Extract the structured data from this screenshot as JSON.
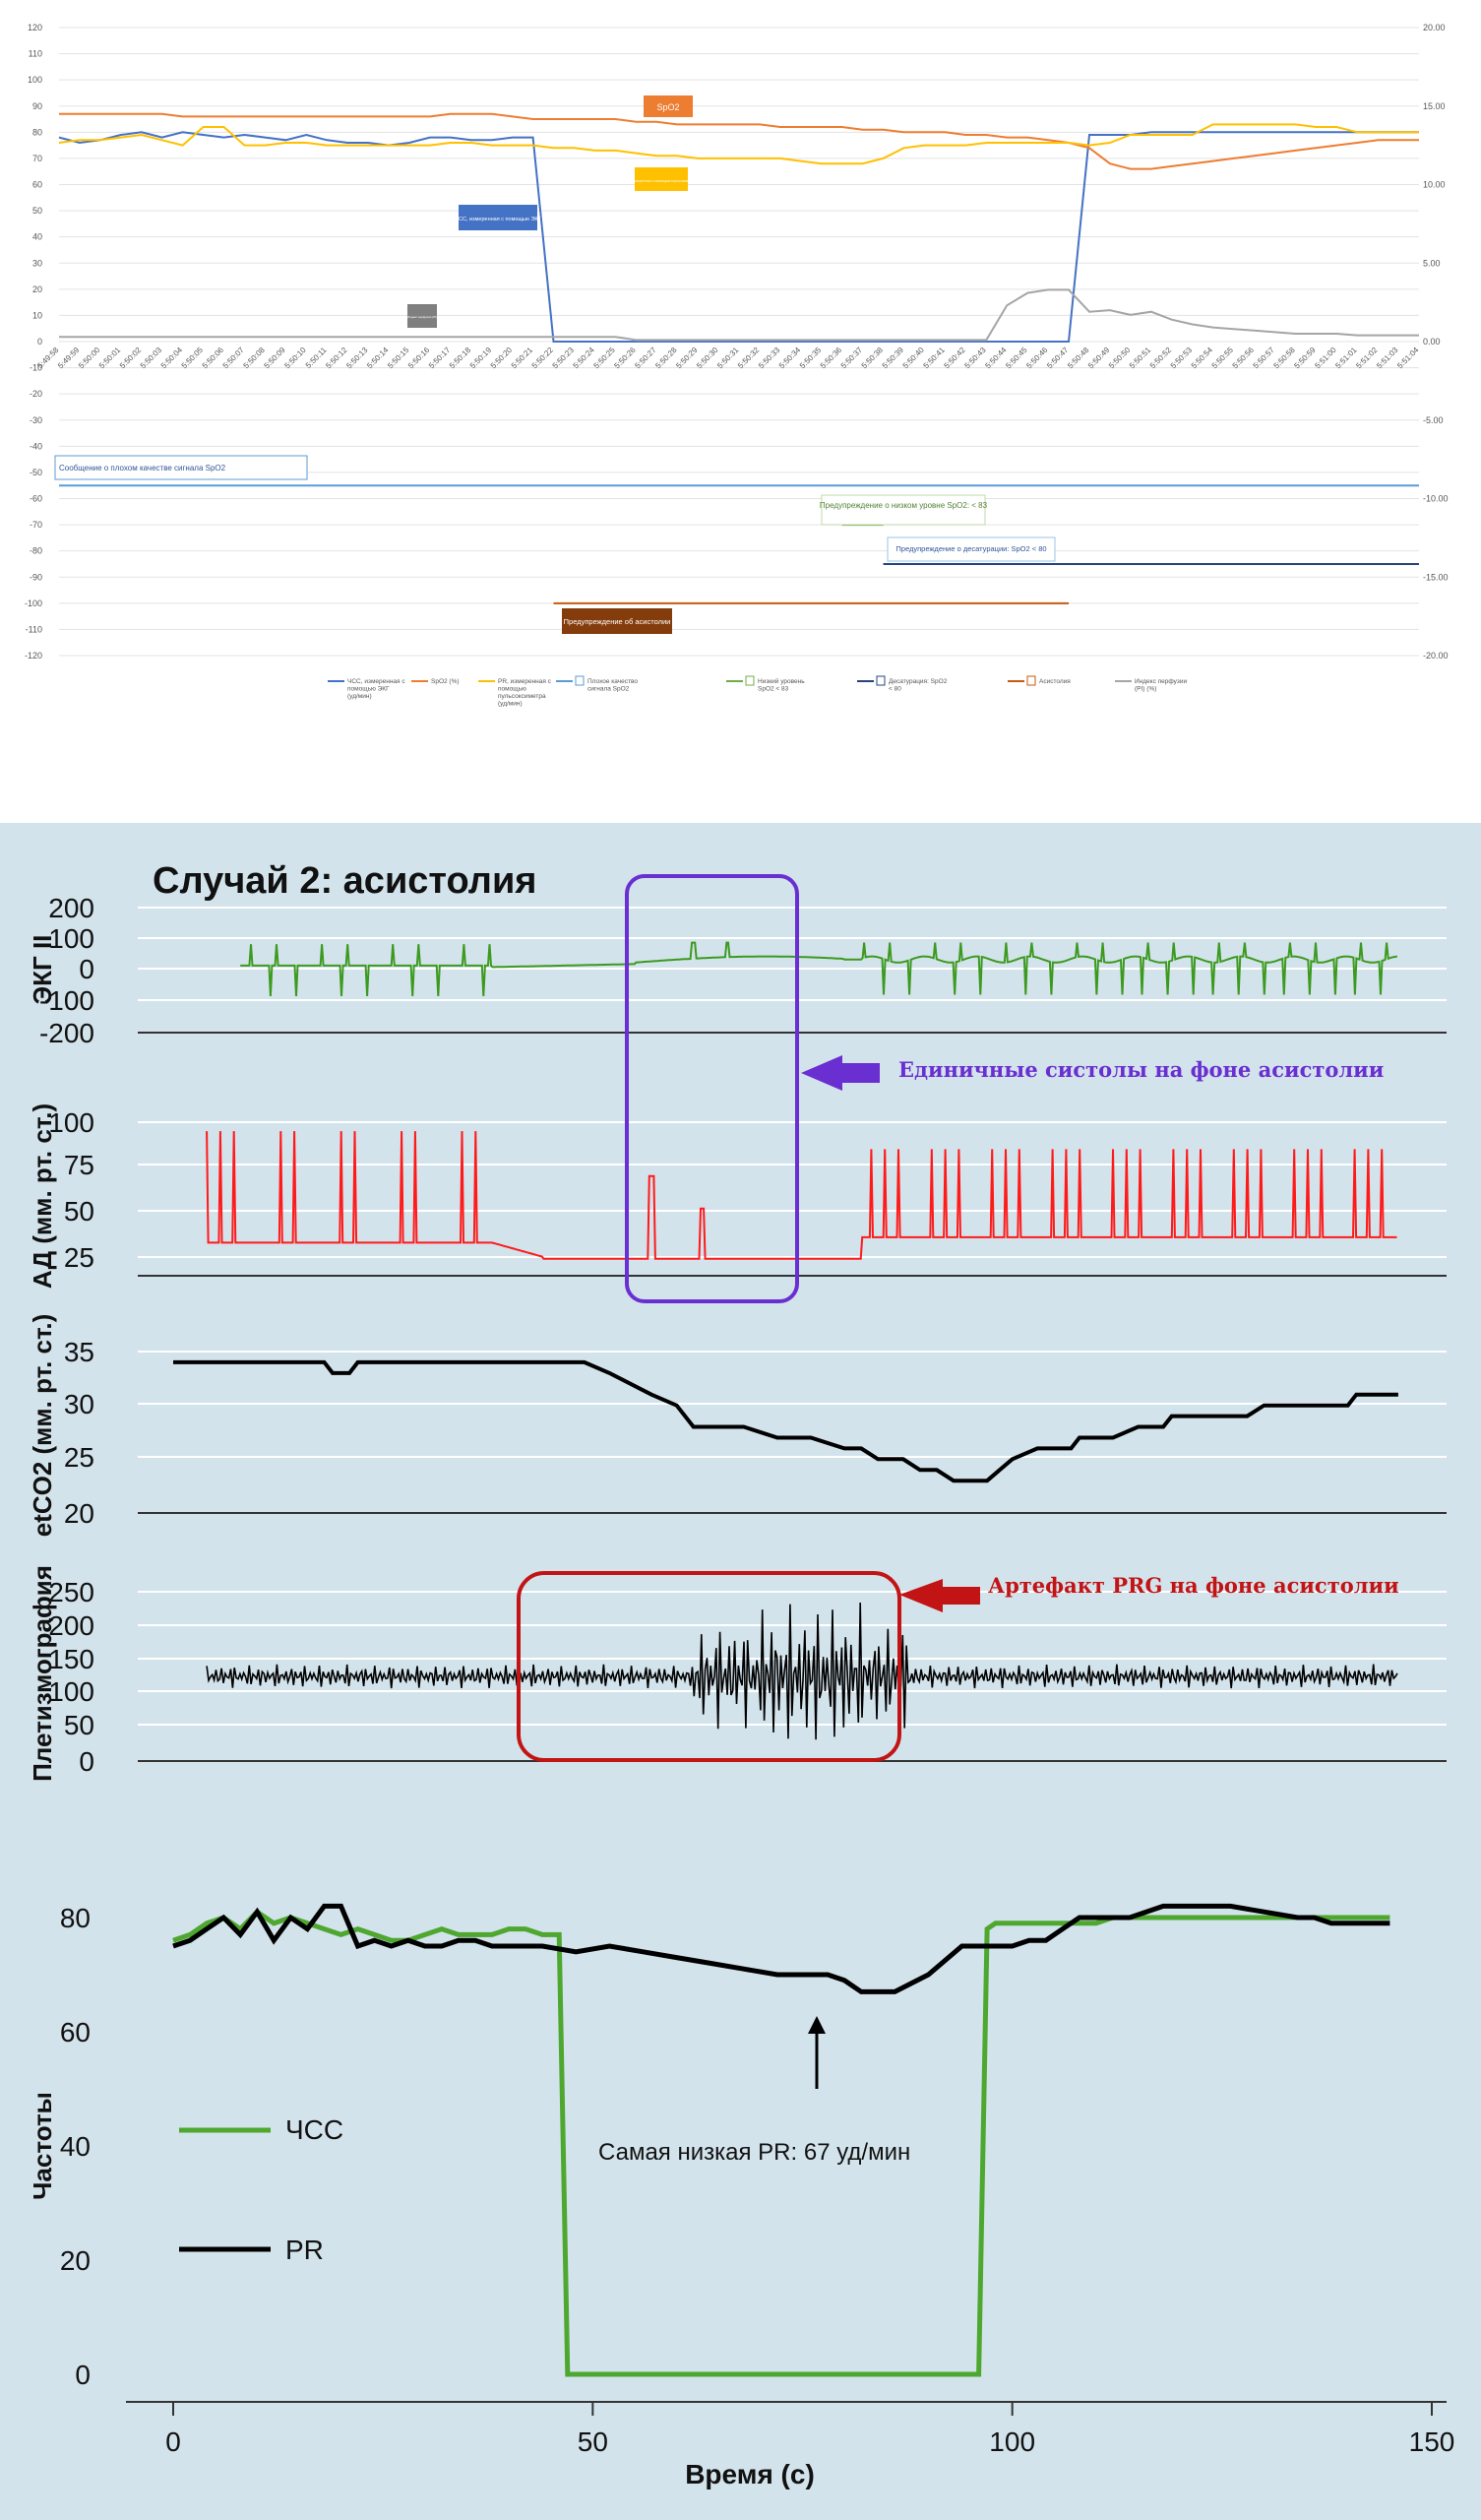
{
  "colors": {
    "hr_blue": "#4472c4",
    "spo2_orange": "#ed7d31",
    "pr_yellow": "#ffc000",
    "poor_signal": "#5b9bd5",
    "low_level_green": "#70ad47",
    "desat_navy": "#264478",
    "asystole_brown": "#c55a11",
    "pi_gray": "#a5a5a5",
    "ecg_green": "#3c9a1e",
    "bp_red": "#ff1a1a",
    "purple": "#6a2fd1",
    "dark_red": "#c21414",
    "panel_bg": "#d3e3ec",
    "hr_green": "#4ea72e"
  },
  "chart_data": [
    {
      "type": "line",
      "ylim": [
        -120,
        120
      ],
      "yticks": [
        "120",
        "110",
        "100",
        "90",
        "80",
        "70",
        "60",
        "50",
        "40",
        "30",
        "20",
        "10",
        "0",
        "-10",
        "-20",
        "-30",
        "-40",
        "-50",
        "-60",
        "-70",
        "-80",
        "-90",
        "-100",
        "-110",
        "-120"
      ],
      "y2ticks": [
        "20.00",
        "15.00",
        "10.00",
        "5.00",
        "0.00",
        "-5.00",
        "-10.00",
        "-15.00",
        "-20.00"
      ],
      "x": [
        "5:49:58",
        "5:49:59",
        "5:50:00",
        "5:50:01",
        "5:50:02",
        "5:50:03",
        "5:50:04",
        "5:50:05",
        "5:50:06",
        "5:50:07",
        "5:50:08",
        "5:50:09",
        "5:50:10",
        "5:50:11",
        "5:50:12",
        "5:50:13",
        "5:50:14",
        "5:50:15",
        "5:50:16",
        "5:50:17",
        "5:50:18",
        "5:50:19",
        "5:50:20",
        "5:50:21",
        "5:50:22",
        "5:50:23",
        "5:50:24",
        "5:50:25",
        "5:50:26",
        "5:50:27",
        "5:50:28",
        "5:50:29",
        "5:50:30",
        "5:50:31",
        "5:50:32",
        "5:50:33",
        "5:50:34",
        "5:50:35",
        "5:50:36",
        "5:50:37",
        "5:50:38",
        "5:50:39",
        "5:50:40",
        "5:50:41",
        "5:50:42",
        "5:50:43",
        "5:50:44",
        "5:50:45",
        "5:50:46",
        "5:50:47",
        "5:50:48",
        "5:50:49",
        "5:50:50",
        "5:50:51",
        "5:50:52",
        "5:50:53",
        "5:50:54",
        "5:50:55",
        "5:50:56",
        "5:50:57",
        "5:50:58",
        "5:50:59",
        "5:51:00",
        "5:51:01",
        "5:51:02",
        "5:51:03",
        "5:51:04"
      ],
      "series": [
        {
          "name": "ЧСС, измеренная с помощью ЭКГ (уд/мин)",
          "color_key": "hr_blue",
          "values": [
            78,
            76,
            77,
            79,
            80,
            78,
            80,
            79,
            78,
            79,
            78,
            77,
            79,
            77,
            76,
            76,
            75,
            76,
            78,
            78,
            77,
            77,
            78,
            78,
            0,
            0,
            0,
            0,
            0,
            0,
            0,
            0,
            0,
            0,
            0,
            0,
            0,
            0,
            0,
            0,
            0,
            0,
            0,
            0,
            0,
            0,
            0,
            0,
            0,
            0,
            79,
            79,
            79,
            80,
            80,
            80,
            80,
            80,
            80,
            80,
            80,
            80,
            80,
            80,
            80,
            80,
            80
          ]
        },
        {
          "name": "SpO2 (%)",
          "color_key": "spo2_orange",
          "values": [
            87,
            87,
            87,
            87,
            87,
            87,
            86,
            86,
            86,
            86,
            86,
            86,
            86,
            86,
            86,
            86,
            86,
            86,
            86,
            87,
            87,
            87,
            86,
            85,
            85,
            85,
            85,
            85,
            84,
            84,
            83,
            83,
            83,
            83,
            83,
            82,
            82,
            82,
            82,
            81,
            81,
            80,
            80,
            80,
            79,
            79,
            78,
            78,
            77,
            76,
            74,
            68,
            66,
            66,
            67,
            68,
            69,
            70,
            71,
            72,
            73,
            74,
            75,
            76,
            77,
            77,
            77
          ]
        },
        {
          "name": "PR, измеренная с помощью пульсоксиметра (уд/мин)",
          "color_key": "pr_yellow",
          "values": [
            76,
            77,
            77,
            78,
            79,
            77,
            75,
            82,
            82,
            75,
            75,
            76,
            76,
            75,
            75,
            75,
            75,
            75,
            75,
            76,
            76,
            75,
            75,
            75,
            74,
            74,
            73,
            73,
            72,
            71,
            71,
            70,
            70,
            70,
            70,
            70,
            69,
            68,
            68,
            68,
            70,
            74,
            75,
            75,
            75,
            76,
            76,
            76,
            76,
            76,
            75,
            76,
            79,
            79,
            79,
            79,
            83,
            83,
            83,
            83,
            83,
            82,
            82,
            80,
            80,
            80,
            80
          ]
        },
        {
          "name": "Индекс перфузии (PI) (%)",
          "color_key": "pi_gray",
          "axis": "right",
          "values": [
            0.3,
            0.3,
            0.3,
            0.3,
            0.3,
            0.3,
            0.3,
            0.3,
            0.3,
            0.3,
            0.3,
            0.3,
            0.3,
            0.3,
            0.3,
            0.3,
            0.3,
            0.3,
            0.3,
            0.3,
            0.3,
            0.3,
            0.3,
            0.3,
            0.3,
            0.3,
            0.3,
            0.3,
            0.1,
            0.1,
            0.1,
            0.1,
            0.1,
            0.1,
            0.1,
            0.1,
            0.1,
            0.1,
            0.1,
            0.1,
            0.1,
            0.1,
            0.1,
            0.1,
            0.1,
            0.1,
            2.3,
            3.1,
            3.3,
            3.3,
            1.9,
            2,
            1.7,
            1.9,
            1.4,
            1.1,
            0.9,
            0.8,
            0.7,
            0.6,
            0.5,
            0.5,
            0.5,
            0.4,
            0.4,
            0.4,
            0.4
          ]
        }
      ],
      "legend": [
        {
          "label": "ЧСС, измеренная с помощью ЭКГ (уд/мин)",
          "color_key": "hr_blue",
          "boxed": false
        },
        {
          "label": "SpO2 (%)",
          "color_key": "spo2_orange",
          "boxed": false
        },
        {
          "label": "PR, измеренная с помощью пульсоксиметра (уд/мин)",
          "color_key": "pr_yellow",
          "boxed": false
        },
        {
          "label": "Плохое качество сигнала SpO2",
          "color_key": "poor_signal",
          "boxed": true
        },
        {
          "label": "Низкий уровень SpO2 < 83",
          "color_key": "low_level_green",
          "boxed": true
        },
        {
          "label": "Десатурация: SpO2 < 80",
          "color_key": "desat_navy",
          "boxed": true
        },
        {
          "label": "Асистолия",
          "color_key": "asystole_brown",
          "boxed": true
        },
        {
          "label": "Индекс перфузии (PI) (%)",
          "color_key": "pi_gray",
          "boxed": false
        }
      ],
      "events": [
        {
          "label": "Сообщение о плохом качестве сигнала SpO2",
          "color_key": "poor_signal",
          "y": -55,
          "x_from": "5:49:58",
          "x_to": "5:51:04"
        },
        {
          "label": "Предупреждение о низком уровне SpO2: < 83",
          "color_key": "low_level_green",
          "y": -70,
          "x_from": "5:50:36",
          "x_to": "5:50:38"
        },
        {
          "label": "Предупреждение о десатурации: SpO2 < 80",
          "color_key": "desat_navy",
          "y": -85,
          "x_from": "5:50:38",
          "x_to": "5:51:04"
        },
        {
          "label": "Предупреждение об асистолии",
          "color_key": "asystole_brown",
          "y": -100,
          "x_from": "5:50:22",
          "x_to": "5:50:47"
        }
      ],
      "callouts": {
        "spo2": "SpO2",
        "hr": "ЧСС, измеренная с помощью ЭКГ",
        "pr": "PR, измеренная с помощью пульсоксиметра",
        "pi": "Индекс перфузии (PI)"
      }
    },
    {
      "type": "line",
      "title": "Случай 2: асистолия",
      "xlabel": "Время (с)",
      "xlim": [
        0,
        150
      ],
      "xticks": [
        "0",
        "50",
        "100",
        "150"
      ],
      "panels": [
        {
          "ylabel": "ЭКГ II",
          "yticks": [
            "200",
            "100",
            "0",
            "-100",
            "-200"
          ],
          "ylim": [
            -200,
            200
          ]
        },
        {
          "ylabel": "АД (мм. рт. ст.)",
          "yticks": [
            "100",
            "75",
            "50",
            "25"
          ],
          "ylim": [
            20,
            110
          ]
        },
        {
          "ylabel": "etCO2 (мм. рт. ст.)",
          "yticks": [
            "35",
            "30",
            "25",
            "20"
          ],
          "ylim": [
            20,
            36
          ],
          "x": [
            0,
            18,
            19,
            21,
            22,
            49,
            52,
            57,
            60,
            62,
            68,
            72,
            76,
            80,
            82,
            84,
            87,
            89,
            91,
            93,
            97,
            100,
            103,
            107,
            108,
            112,
            115,
            118,
            119,
            128,
            130,
            140,
            141,
            146
          ],
          "values": [
            34,
            34,
            33,
            33,
            34,
            34,
            33,
            31,
            30,
            28,
            28,
            27,
            27,
            26,
            26,
            25,
            25,
            24,
            24,
            23,
            23,
            25,
            26,
            26,
            27,
            27,
            28,
            28,
            29,
            29,
            30,
            30,
            31,
            31
          ]
        },
        {
          "ylabel": "Плетизмография",
          "yticks": [
            "250",
            "200",
            "150",
            "100",
            "50",
            "0"
          ],
          "ylim": [
            0,
            260
          ]
        },
        {
          "ylabel": "Частоты",
          "yticks": [
            "80",
            "60",
            "40",
            "20",
            "0"
          ],
          "ylim": [
            0,
            85
          ]
        }
      ],
      "series": [
        {
          "name": "ЧСС",
          "color_key": "hr_green",
          "x": [
            0,
            2,
            4,
            6,
            8,
            10,
            12,
            14,
            16,
            18,
            20,
            22,
            24,
            26,
            28,
            30,
            32,
            34,
            36,
            38,
            40,
            42,
            44,
            46,
            47,
            96,
            97,
            98,
            100,
            102,
            104,
            106,
            108,
            110,
            112,
            114,
            120,
            130,
            140,
            145
          ],
          "values": [
            76,
            77,
            79,
            80,
            78,
            81,
            79,
            80,
            79,
            78,
            77,
            78,
            77,
            76,
            76,
            77,
            78,
            77,
            77,
            77,
            78,
            78,
            77,
            77,
            0,
            0,
            78,
            79,
            79,
            79,
            79,
            79,
            79,
            79,
            80,
            80,
            80,
            80,
            80,
            80
          ]
        },
        {
          "name": "PR",
          "color_key": "black",
          "x": [
            0,
            2,
            4,
            6,
            8,
            10,
            12,
            14,
            16,
            18,
            20,
            22,
            24,
            26,
            28,
            30,
            32,
            34,
            36,
            38,
            40,
            44,
            48,
            52,
            56,
            60,
            64,
            68,
            72,
            74,
            78,
            80,
            82,
            84,
            86,
            90,
            94,
            98,
            100,
            102,
            104,
            106,
            108,
            110,
            114,
            118,
            122,
            126,
            130,
            134,
            136,
            138,
            140,
            145
          ],
          "values": [
            75,
            76,
            78,
            80,
            77,
            81,
            76,
            80,
            78,
            82,
            82,
            75,
            76,
            75,
            76,
            75,
            75,
            76,
            76,
            75,
            75,
            75,
            74,
            75,
            74,
            73,
            72,
            71,
            70,
            70,
            70,
            69,
            67,
            67,
            67,
            70,
            75,
            75,
            75,
            76,
            76,
            78,
            80,
            80,
            80,
            82,
            82,
            82,
            81,
            80,
            80,
            79,
            79,
            79
          ]
        }
      ],
      "annotations": {
        "single_systoles": "Единичные систолы на фоне асистолии",
        "prg_artifact": "Артефакт PRG на фоне асистолии",
        "lowest_pr": "Самая низкая PR: 67 уд/мин"
      }
    }
  ]
}
